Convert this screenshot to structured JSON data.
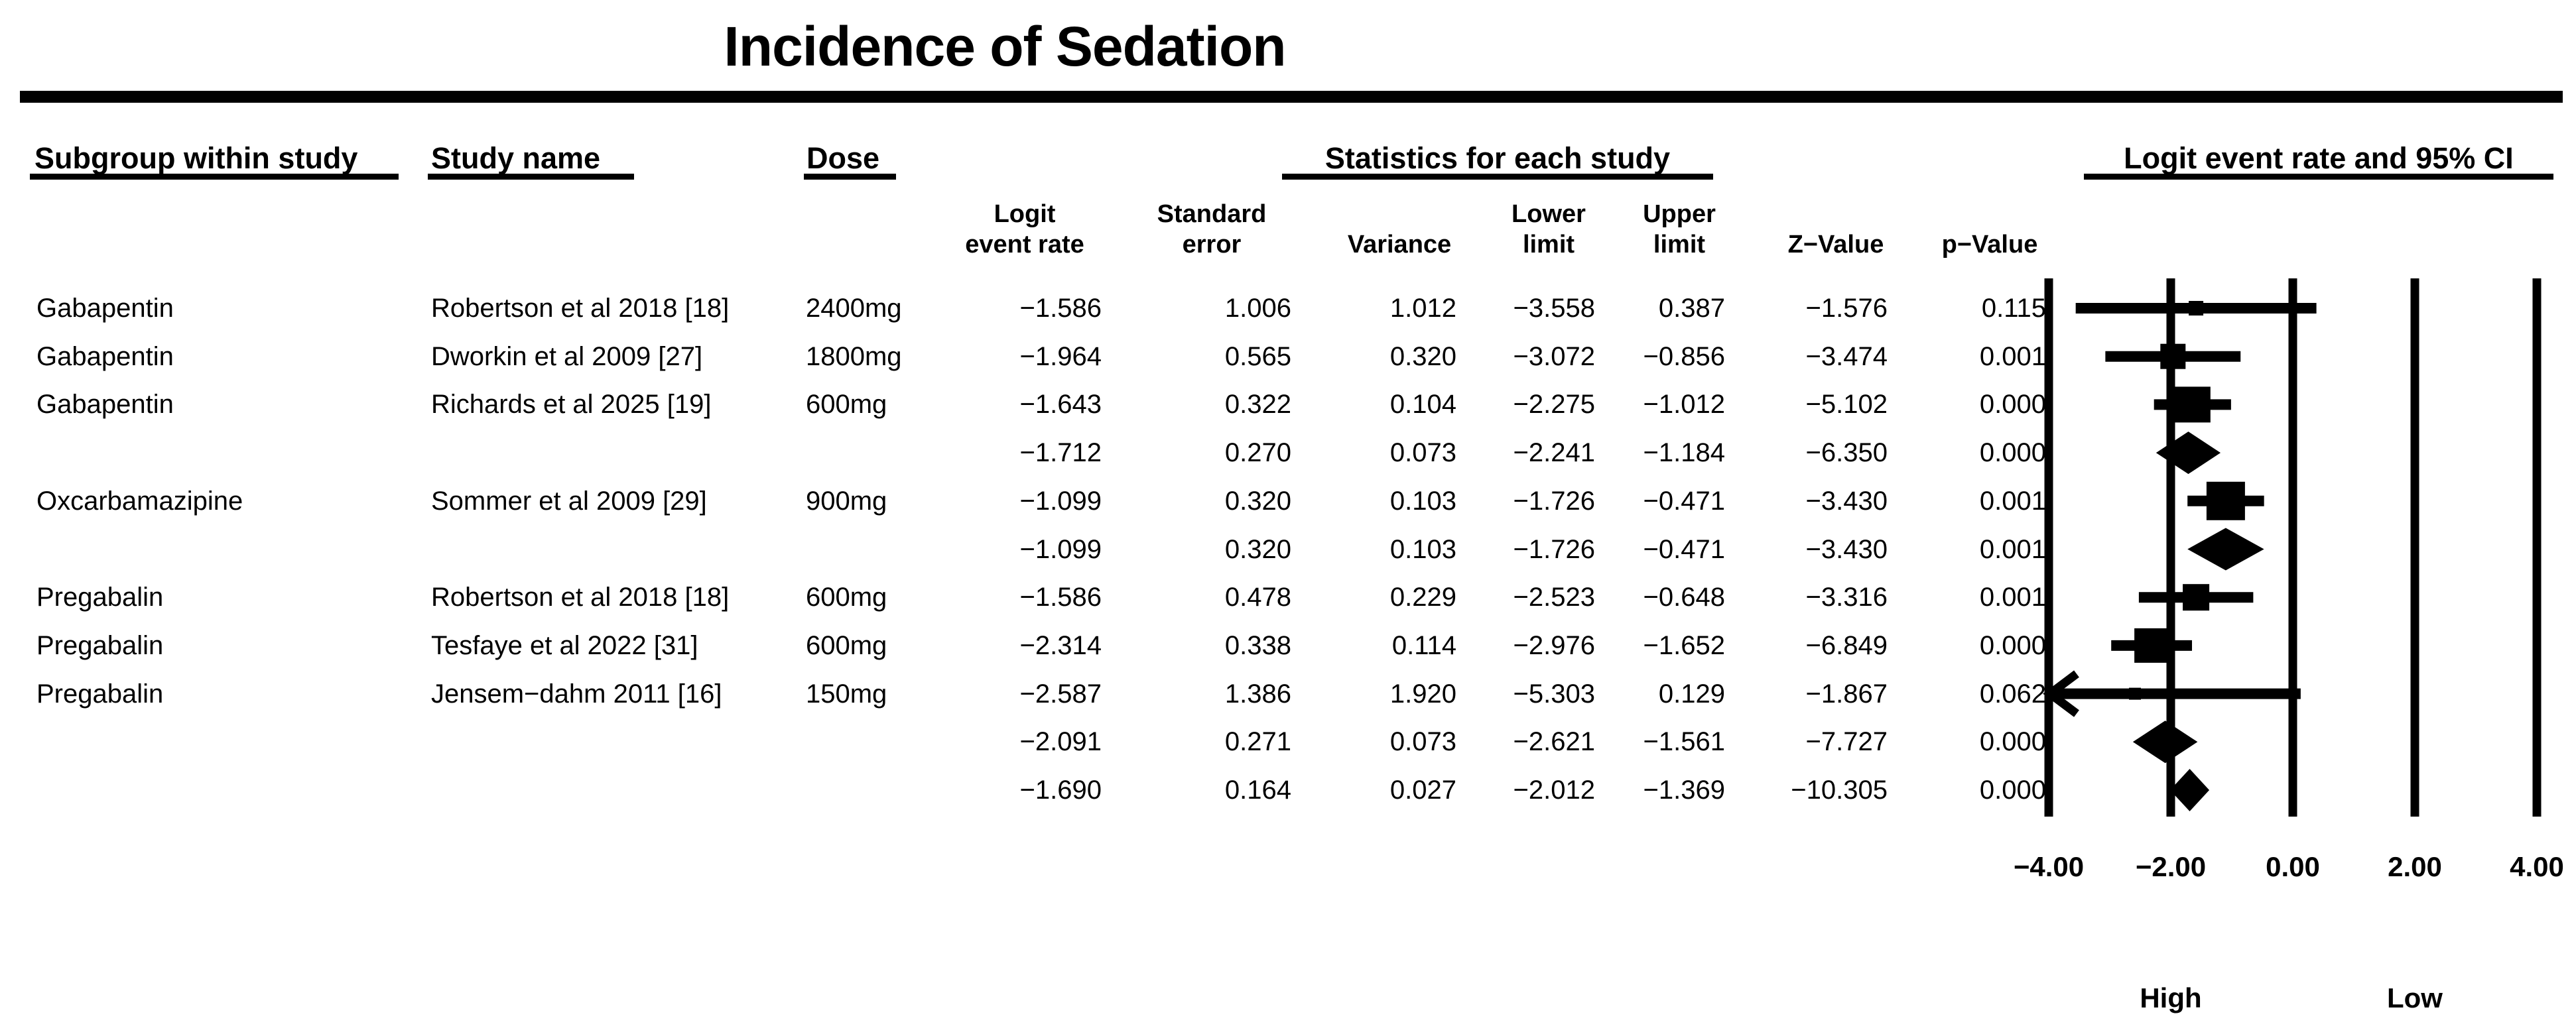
{
  "title": "Incidence of Sedation",
  "table": {
    "group_headers": {
      "subgroup": "Subgroup within study",
      "study": "Study name",
      "dose": "Dose",
      "stats": "Statistics for each study",
      "plot": "Logit event rate and 95% CI"
    },
    "stat_headers": {
      "logit": "Logit\nevent rate",
      "se": "Standard\nerror",
      "variance": "Variance",
      "lower": "Lower\nlimit",
      "upper": "Upper\nlimit",
      "z": "Z−Value",
      "p": "p−Value"
    }
  },
  "chart_data": {
    "type": "forest",
    "title": "Incidence of Sedation",
    "xlim": [
      -4,
      4
    ],
    "grid": true,
    "x_ticks": [
      {
        "value": -4,
        "label": "−4.00"
      },
      {
        "value": -2,
        "label": "−2.00"
      },
      {
        "value": 0,
        "label": "0.00"
      },
      {
        "value": 2,
        "label": "2.00"
      },
      {
        "value": 4,
        "label": "4.00"
      }
    ],
    "axis_annotations": {
      "left": "High",
      "right": "Low"
    },
    "rows": [
      {
        "subgroup": "Gabapentin",
        "study": "Robertson et al 2018 [18]",
        "dose": "2400mg",
        "logit": "−1.586",
        "se": "1.006",
        "variance": "1.012",
        "lower": "−3.558",
        "upper": "0.387",
        "z": "−1.576",
        "p": "0.115",
        "est": -1.586,
        "lo": -3.558,
        "hi": 0.387,
        "marker": "square",
        "size": 22
      },
      {
        "subgroup": "Gabapentin",
        "study": "Dworkin et al 2009 [27]",
        "dose": "1800mg",
        "logit": "−1.964",
        "se": "0.565",
        "variance": "0.320",
        "lower": "−3.072",
        "upper": "−0.856",
        "z": "−3.474",
        "p": "0.001",
        "est": -1.964,
        "lo": -3.072,
        "hi": -0.856,
        "marker": "square",
        "size": 38
      },
      {
        "subgroup": "Gabapentin",
        "study": "Richards et al 2025 [19]",
        "dose": "600mg",
        "logit": "−1.643",
        "se": "0.322",
        "variance": "0.104",
        "lower": "−2.275",
        "upper": "−1.012",
        "z": "−5.102",
        "p": "0.000",
        "est": -1.643,
        "lo": -2.275,
        "hi": -1.012,
        "marker": "square",
        "size": 54
      },
      {
        "subgroup": "",
        "study": "",
        "dose": "",
        "logit": "−1.712",
        "se": "0.270",
        "variance": "0.073",
        "lower": "−2.241",
        "upper": "−1.184",
        "z": "−6.350",
        "p": "0.000",
        "est": -1.712,
        "lo": -2.241,
        "hi": -1.184,
        "marker": "diamond"
      },
      {
        "subgroup": "Oxcarbamazipine",
        "study": "Sommer et al 2009 [29]",
        "dose": "900mg",
        "logit": "−1.099",
        "se": "0.320",
        "variance": "0.103",
        "lower": "−1.726",
        "upper": "−0.471",
        "z": "−3.430",
        "p": "0.001",
        "est": -1.099,
        "lo": -1.726,
        "hi": -0.471,
        "marker": "square",
        "size": 58
      },
      {
        "subgroup": "",
        "study": "",
        "dose": "",
        "logit": "−1.099",
        "se": "0.320",
        "variance": "0.103",
        "lower": "−1.726",
        "upper": "−0.471",
        "z": "−3.430",
        "p": "0.001",
        "est": -1.099,
        "lo": -1.726,
        "hi": -0.471,
        "marker": "diamond"
      },
      {
        "subgroup": "Pregabalin",
        "study": "Robertson et al 2018 [18]",
        "dose": "600mg",
        "logit": "−1.586",
        "se": "0.478",
        "variance": "0.229",
        "lower": "−2.523",
        "upper": "−0.648",
        "z": "−3.316",
        "p": "0.001",
        "est": -1.586,
        "lo": -2.523,
        "hi": -0.648,
        "marker": "square",
        "size": 40
      },
      {
        "subgroup": "Pregabalin",
        "study": "Tesfaye et al 2022 [31]",
        "dose": "600mg",
        "logit": "−2.314",
        "se": "0.338",
        "variance": "0.114",
        "lower": "−2.976",
        "upper": "−1.652",
        "z": "−6.849",
        "p": "0.000",
        "est": -2.314,
        "lo": -2.976,
        "hi": -1.652,
        "marker": "square",
        "size": 52
      },
      {
        "subgroup": "Pregabalin",
        "study": "Jensem−dahm 2011 [16]",
        "dose": "150mg",
        "logit": "−2.587",
        "se": "1.386",
        "variance": "1.920",
        "lower": "−5.303",
        "upper": "0.129",
        "z": "−1.867",
        "p": "0.062",
        "est": -2.587,
        "lo": -5.303,
        "hi": 0.129,
        "marker": "square",
        "size": 18
      },
      {
        "subgroup": "",
        "study": "",
        "dose": "",
        "logit": "−2.091",
        "se": "0.271",
        "variance": "0.073",
        "lower": "−2.621",
        "upper": "−1.561",
        "z": "−7.727",
        "p": "0.000",
        "est": -2.091,
        "lo": -2.621,
        "hi": -1.561,
        "marker": "diamond"
      },
      {
        "subgroup": "",
        "study": "",
        "dose": "",
        "logit": "−1.690",
        "se": "0.164",
        "variance": "0.027",
        "lower": "−2.012",
        "upper": "−1.369",
        "z": "−10.305",
        "p": "0.000",
        "est": -1.69,
        "lo": -2.012,
        "hi": -1.369,
        "marker": "diamond"
      }
    ]
  }
}
